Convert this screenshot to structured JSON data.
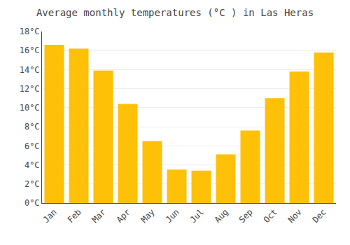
{
  "chart_data": {
    "type": "bar",
    "title": "Average monthly temperatures (°C ) in Las Heras",
    "categories": [
      "Jan",
      "Feb",
      "Mar",
      "Apr",
      "May",
      "Jun",
      "Jul",
      "Aug",
      "Sep",
      "Oct",
      "Nov",
      "Dec"
    ],
    "values": [
      16.6,
      16.2,
      13.9,
      10.4,
      6.5,
      3.5,
      3.4,
      5.1,
      7.6,
      11.0,
      13.8,
      15.8
    ],
    "color": "#FFC107",
    "ylim": [
      0,
      18
    ],
    "yticks": [
      {
        "value": 0,
        "label": "0°C"
      },
      {
        "value": 2,
        "label": "2°C"
      },
      {
        "value": 4,
        "label": "4°C"
      },
      {
        "value": 6,
        "label": "6°C"
      },
      {
        "value": 8,
        "label": "8°C"
      },
      {
        "value": 10,
        "label": "10°C"
      },
      {
        "value": 12,
        "label": "12°C"
      },
      {
        "value": 14,
        "label": "14°C"
      },
      {
        "value": 16,
        "label": "16°C"
      },
      {
        "value": 18,
        "label": "18°C"
      }
    ],
    "grid": true
  }
}
